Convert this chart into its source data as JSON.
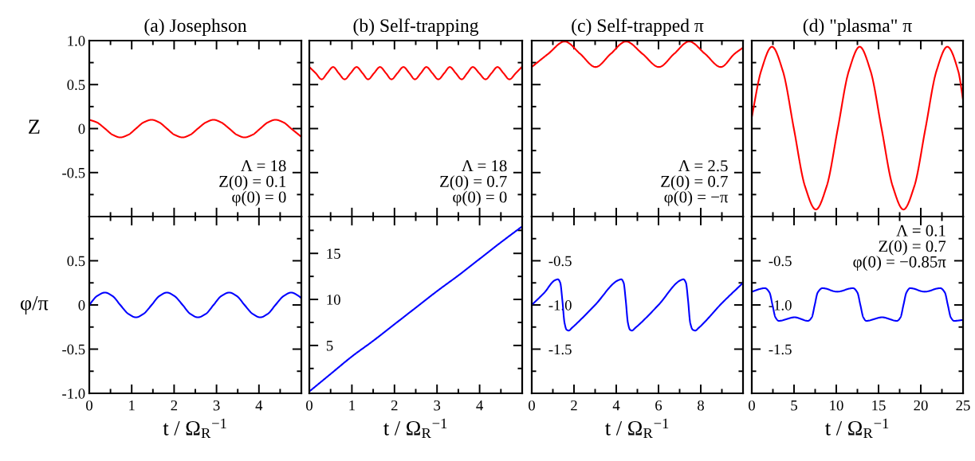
{
  "chart_data": [
    {
      "type": "line",
      "title": "(a) Josephson",
      "ylabel": "Z",
      "xlim": [
        0,
        5
      ],
      "xticks": [
        0,
        1,
        2,
        3,
        4
      ],
      "ylim": [
        -1,
        1
      ],
      "yticks": [
        -0.5,
        0,
        0.5,
        {
          "value": 1,
          "label": "1.0"
        }
      ],
      "tick_labels": "y",
      "annotations": [
        "Λ = 18\nZ(0) = 0.1\nφ(0) = 0"
      ],
      "x": [
        0,
        0.18,
        0.37,
        0.55,
        0.73,
        0.92,
        1.1,
        1.28,
        1.47,
        1.65,
        1.83,
        2.01,
        2.2,
        2.38,
        2.56,
        2.75,
        2.93,
        3.11,
        3.3,
        3.48,
        3.66,
        3.85,
        4.03,
        4.21,
        4.39,
        4.58,
        4.76,
        4.94,
        4.99
      ],
      "series": [
        {
          "color": "#ff0000",
          "values": [
            0.1,
            0.07,
            0,
            -0.07,
            -0.1,
            -0.07,
            0,
            0.07,
            0.1,
            0.07,
            0,
            -0.07,
            -0.1,
            -0.07,
            0,
            0.07,
            0.1,
            0.07,
            0,
            -0.07,
            -0.1,
            -0.07,
            0,
            0.07,
            0.1,
            0.07,
            0,
            -0.07,
            -0.09
          ]
        }
      ]
    },
    {
      "type": "line",
      "title": "(b) Self-trapping",
      "xlim": [
        0,
        5
      ],
      "xticks": [
        0,
        1,
        2,
        3,
        4
      ],
      "ylim": [
        -1,
        1
      ],
      "yticks": [
        -0.5,
        0,
        0.5
      ],
      "tick_labels": false,
      "annotations": [
        "Λ = 18\nZ(0) = 0.7\nφ(0) = 0"
      ],
      "x": [
        0,
        0.15,
        0.29,
        0.42,
        0.56,
        0.69,
        0.83,
        0.97,
        1.11,
        1.25,
        1.38,
        1.52,
        1.66,
        1.8,
        1.93,
        2.07,
        2.21,
        2.35,
        2.48,
        2.62,
        2.75,
        2.89,
        3.03,
        3.17,
        3.3,
        3.44,
        3.58,
        3.71,
        3.84,
        3.99,
        4.14,
        4.28,
        4.42,
        4.56,
        4.7,
        4.85,
        4.99
      ],
      "series": [
        {
          "color": "#ff0000",
          "values": [
            0.7,
            0.63,
            0.56,
            0.63,
            0.7,
            0.63,
            0.56,
            0.63,
            0.7,
            0.63,
            0.56,
            0.63,
            0.7,
            0.63,
            0.56,
            0.63,
            0.7,
            0.63,
            0.56,
            0.63,
            0.7,
            0.63,
            0.56,
            0.63,
            0.7,
            0.63,
            0.56,
            0.63,
            0.7,
            0.63,
            0.56,
            0.63,
            0.7,
            0.63,
            0.56,
            0.63,
            0.7
          ]
        }
      ]
    },
    {
      "type": "line",
      "title": "(c) Self-trapped π",
      "xlim": [
        0,
        10
      ],
      "xticks": [
        0,
        2,
        4,
        6,
        8
      ],
      "ylim": [
        -1,
        1
      ],
      "yticks": [
        -0.5,
        0,
        0.5
      ],
      "tick_labels": false,
      "annotations": [
        "Λ = 2.5\nZ(0) = 0.7\nφ(0) = −π"
      ],
      "x": [
        0,
        0.78,
        1.56,
        2.29,
        3.02,
        3.74,
        4.46,
        5.24,
        6.02,
        6.74,
        7.45,
        8.2,
        8.95,
        9.6,
        10
      ],
      "series": [
        {
          "color": "#ff0000",
          "values": [
            0.7,
            0.85,
            0.99,
            0.85,
            0.7,
            0.85,
            0.99,
            0.85,
            0.7,
            0.85,
            0.99,
            0.85,
            0.7,
            0.85,
            0.92
          ]
        }
      ]
    },
    {
      "type": "line",
      "title": "(d) \"plasma\" π",
      "xlim": [
        0,
        25
      ],
      "xticks": [
        0,
        5,
        10,
        15,
        20,
        25
      ],
      "ylim": [
        -1,
        1
      ],
      "yticks": [
        -0.5,
        0,
        0.5
      ],
      "tick_labels": false,
      "x": [
        0,
        1.09,
        2.39,
        3.69,
        4.98,
        6.28,
        7.58,
        8.88,
        10.18,
        11.47,
        12.77,
        14.07,
        15.36,
        16.66,
        17.95,
        19.25,
        20.55,
        21.84,
        23.14,
        24.44,
        25
      ],
      "series": [
        {
          "color": "#ff0000",
          "values": [
            0.13,
            0.65,
            0.93,
            0.65,
            0,
            -0.65,
            -0.92,
            -0.65,
            0,
            0.65,
            0.93,
            0.65,
            0,
            -0.65,
            -0.92,
            -0.65,
            0,
            0.65,
            0.93,
            0.65,
            0.33
          ]
        }
      ]
    },
    {
      "type": "line",
      "xlabel": "t / Ω$_{R}$$^{−1}$",
      "ylabel": "φ/π",
      "xlim": [
        0,
        5
      ],
      "xticks": [
        0,
        1,
        2,
        3,
        4
      ],
      "ylim": [
        -1,
        1
      ],
      "yticks": [
        {
          "value": -1,
          "label": "-1.0"
        },
        -0.5,
        0,
        0.5
      ],
      "x": [
        0,
        0.18,
        0.37,
        0.55,
        0.73,
        0.92,
        1.1,
        1.28,
        1.47,
        1.65,
        1.83,
        2.01,
        2.2,
        2.38,
        2.56,
        2.75,
        2.93,
        3.11,
        3.3,
        3.48,
        3.66,
        3.85,
        4.03,
        4.21,
        4.39,
        4.58,
        4.76,
        4.94,
        4.99
      ],
      "series": [
        {
          "color": "#0000ff",
          "values": [
            0,
            0.1,
            0.14,
            0.1,
            0,
            -0.1,
            -0.14,
            -0.1,
            0,
            0.1,
            0.14,
            0.1,
            0,
            -0.1,
            -0.14,
            -0.1,
            0,
            0.1,
            0.14,
            0.1,
            0,
            -0.1,
            -0.14,
            -0.1,
            0,
            0.1,
            0.14,
            0.1,
            0.08
          ]
        }
      ]
    },
    {
      "type": "line",
      "xlabel": "t / Ω$_{R}$$^{−1}$",
      "xlim": [
        0,
        5
      ],
      "xticks": [
        0,
        1,
        2,
        3,
        4
      ],
      "ylim": [
        -0.2,
        19
      ],
      "yticks": [
        5,
        10,
        15
      ],
      "x": [
        0,
        0.5,
        1,
        1.5,
        2,
        2.5,
        3,
        3.5,
        4,
        4.5,
        4.99
      ],
      "series": [
        {
          "color": "#0000ff",
          "values": [
            0,
            1.9,
            3.8,
            5.5,
            7.3,
            9.1,
            10.9,
            12.6,
            14.4,
            16.2,
            17.9
          ]
        }
      ]
    },
    {
      "type": "line",
      "xlabel": "t / Ω$_{R}$$^{−1}$",
      "xlim": [
        0,
        10
      ],
      "xticks": [
        0,
        2,
        4,
        6,
        8
      ],
      "ylim": [
        -2,
        0
      ],
      "yticks": [
        {
          "value": -1.5,
          "label": "-1.5"
        },
        {
          "value": -1,
          "label": "-1.0"
        },
        {
          "value": -0.5,
          "label": "-0.5"
        }
      ],
      "x": [
        0,
        0.6,
        1.1,
        1.24,
        1.35,
        1.45,
        1.55,
        1.65,
        1.75,
        1.9,
        3,
        4.1,
        4.24,
        4.35,
        4.45,
        4.55,
        4.65,
        4.74,
        4.9,
        6,
        7.05,
        7.18,
        7.3,
        7.4,
        7.5,
        7.62,
        7.74,
        7.9,
        9,
        10
      ],
      "series": [
        {
          "color": "#0000ff",
          "values": [
            -1.0,
            -0.86,
            -0.72,
            -0.71,
            -0.75,
            -0.95,
            -1.2,
            -1.28,
            -1.29,
            -1.26,
            -1.0,
            -0.72,
            -0.71,
            -0.75,
            -0.95,
            -1.2,
            -1.28,
            -1.29,
            -1.26,
            -1.0,
            -0.72,
            -0.71,
            -0.75,
            -0.95,
            -1.2,
            -1.28,
            -1.29,
            -1.26,
            -0.98,
            -0.75
          ]
        }
      ]
    },
    {
      "type": "line",
      "xlabel": "t / Ω$_{R}$$^{−1}$",
      "xlim": [
        0,
        25
      ],
      "xticks": [
        0,
        5,
        10,
        15,
        20,
        25
      ],
      "ylim": [
        -2,
        0
      ],
      "yticks": [
        {
          "value": -1.5,
          "label": "-1.5"
        },
        {
          "value": -1,
          "label": "-1.0"
        },
        {
          "value": -0.5,
          "label": "-0.5"
        }
      ],
      "annotations": [
        "Λ = 0.1\nZ(0) = 0.7\nφ(0) = −0.85π"
      ],
      "x": [
        0,
        1.55,
        2.1,
        2.45,
        2.8,
        3.2,
        5.07,
        6.64,
        7.1,
        7.45,
        7.8,
        8.37,
        10.1,
        11.98,
        12.5,
        12.85,
        13.2,
        13.55,
        15.43,
        17.17,
        17.6,
        17.95,
        18.3,
        18.74,
        20.47,
        22.3,
        22.85,
        23.2,
        23.55,
        23.94,
        25
      ],
      "series": [
        {
          "color": "#0000ff",
          "values": [
            -0.85,
            -0.81,
            -0.86,
            -1.0,
            -1.14,
            -1.18,
            -1.14,
            -1.18,
            -1.14,
            -1.0,
            -0.86,
            -0.81,
            -0.85,
            -0.81,
            -0.86,
            -1.0,
            -1.14,
            -1.18,
            -1.14,
            -1.18,
            -1.14,
            -1.0,
            -0.86,
            -0.81,
            -0.85,
            -0.81,
            -0.86,
            -1.0,
            -1.14,
            -1.18,
            -1.17
          ]
        }
      ]
    }
  ]
}
